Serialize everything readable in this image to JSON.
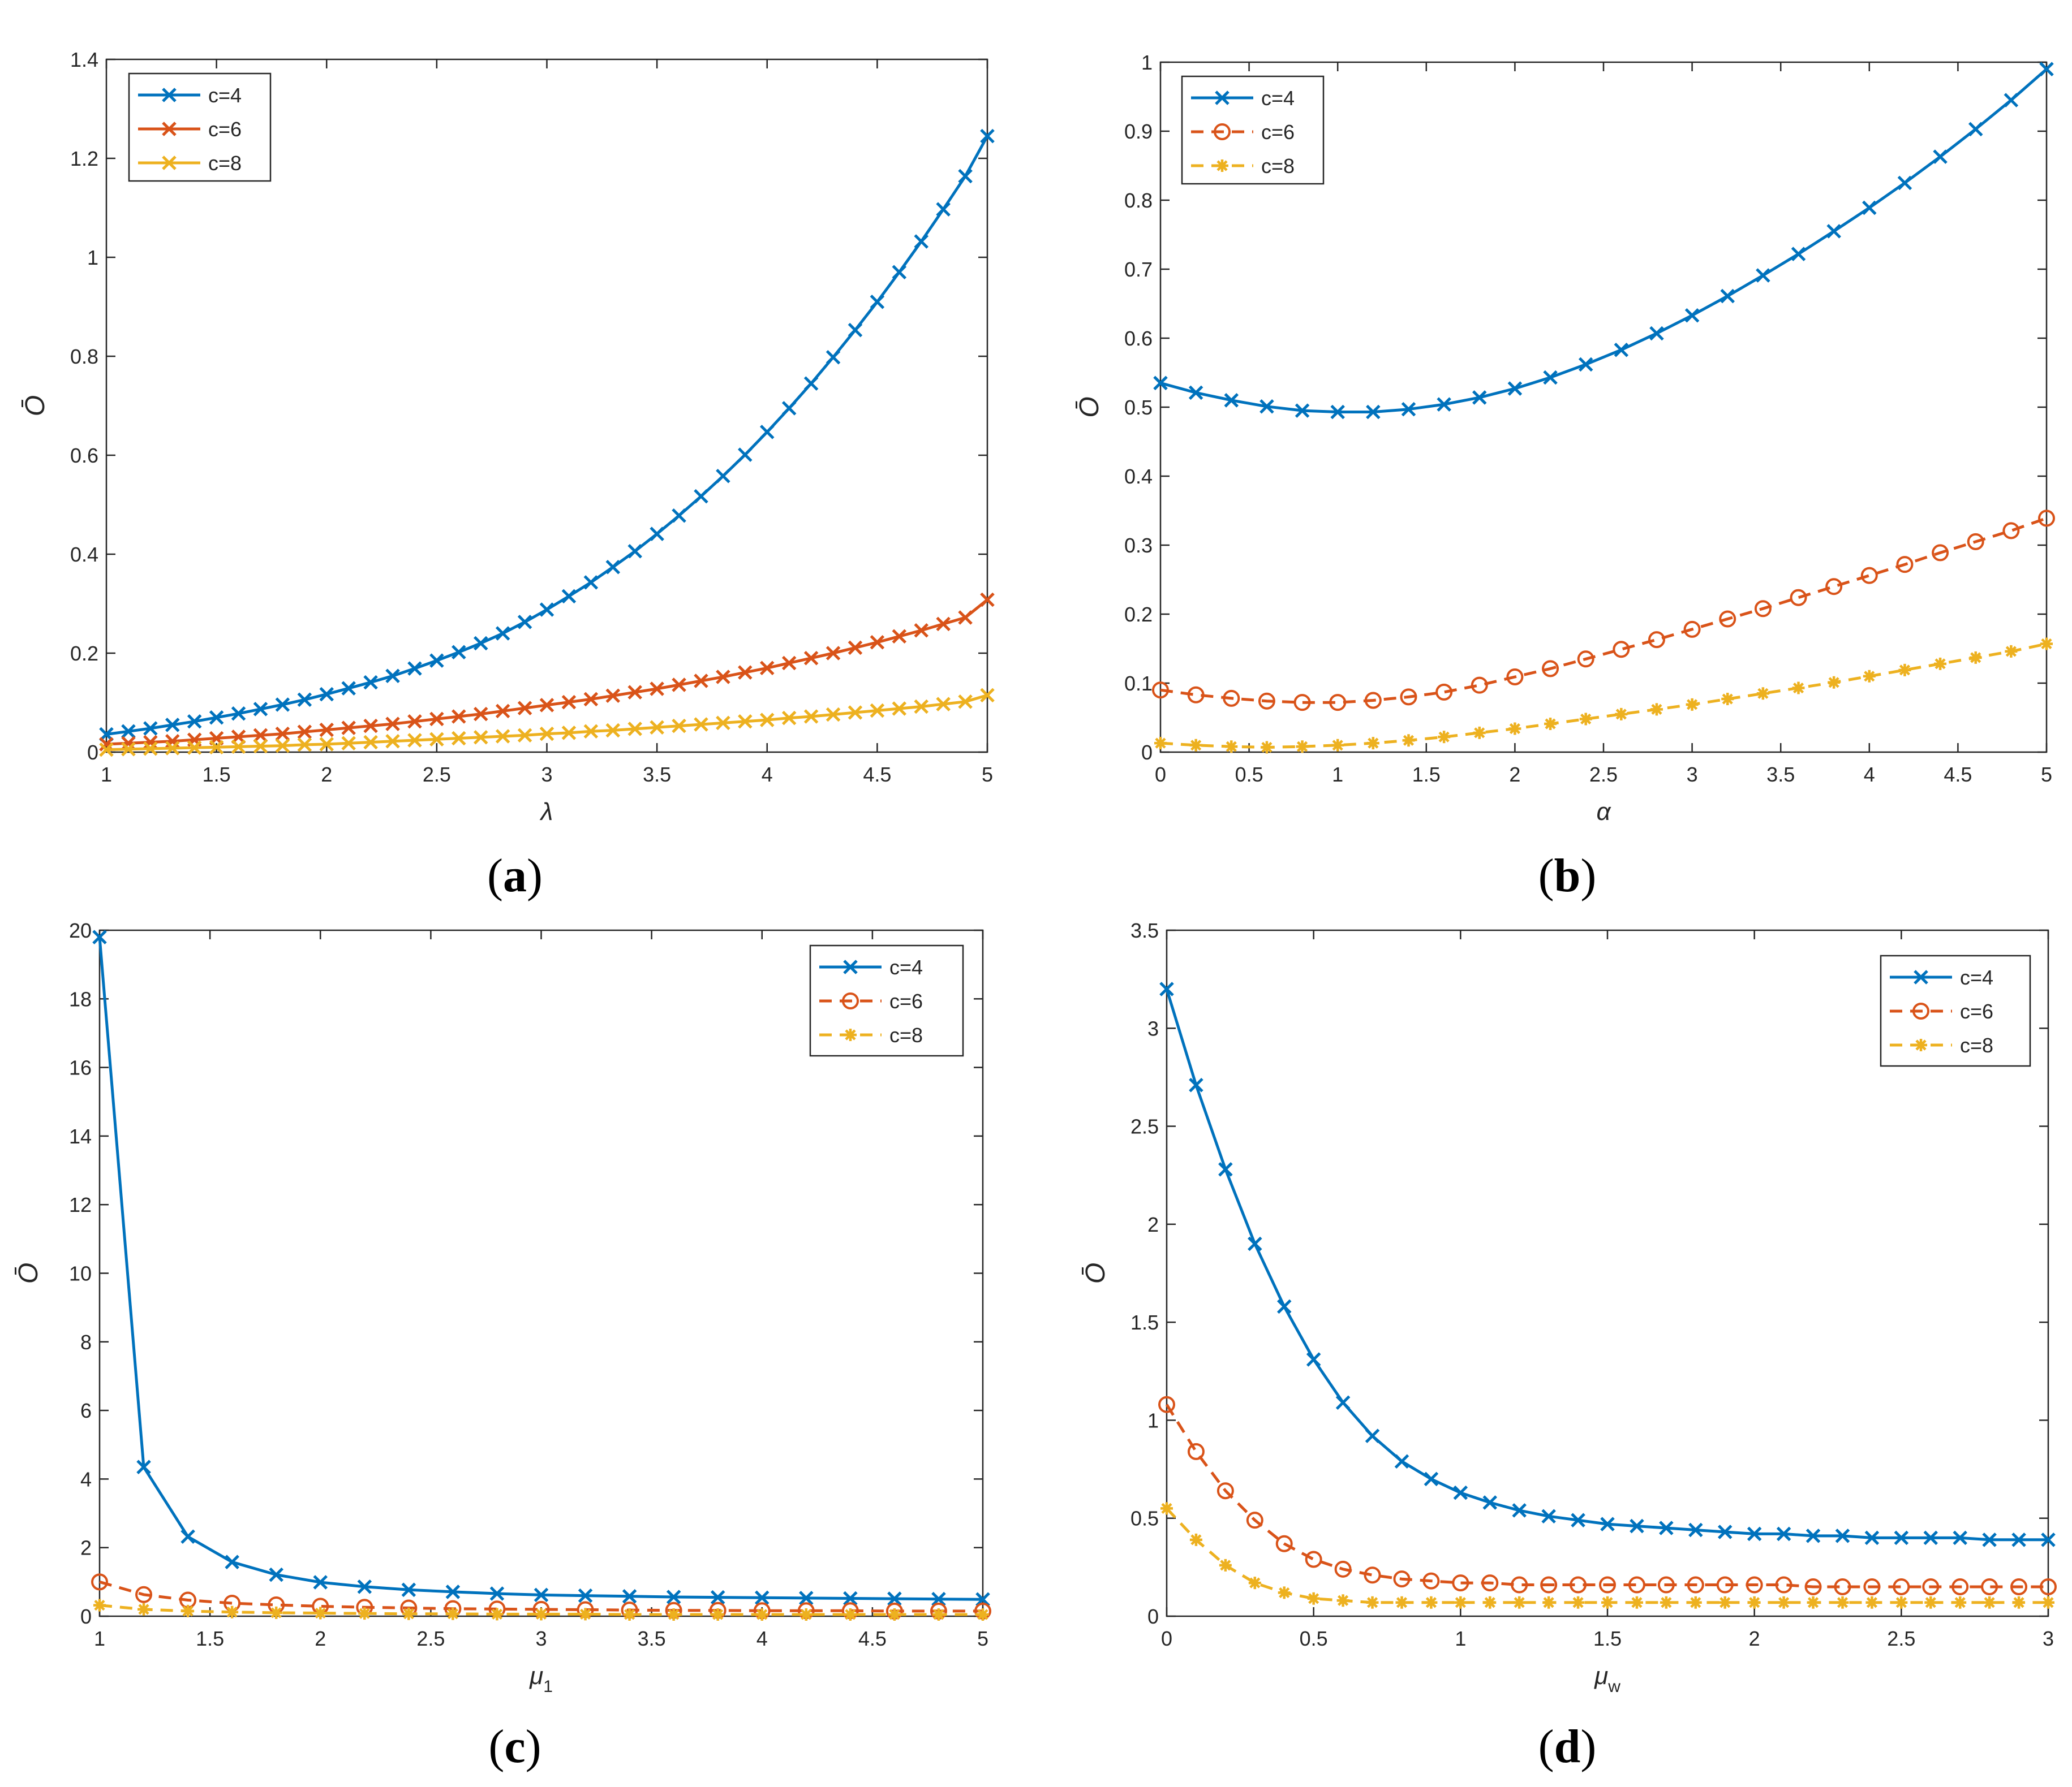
{
  "figure": {
    "title": ""
  },
  "colors": {
    "c4": "#0072BD",
    "c6": "#D95319",
    "c8": "#EDB120",
    "axis": "#262626"
  },
  "chart_data": [
    {
      "id": "a",
      "type": "line",
      "caption": "a",
      "xlabel": "λ",
      "ylabel": "Ō",
      "xlim": [
        1,
        5
      ],
      "ylim": [
        0,
        1.4
      ],
      "xticks": [
        1,
        1.5,
        2,
        2.5,
        3,
        3.5,
        4,
        4.5,
        5
      ],
      "xtick_labels": [
        "1",
        "1.5",
        "2",
        "2.5",
        "3",
        "3.5",
        "4",
        "4.5",
        "5"
      ],
      "yticks": [
        0,
        0.2,
        0.4,
        0.6,
        0.8,
        1,
        1.2,
        1.4
      ],
      "ytick_labels": [
        "0",
        "0.2",
        "0.4",
        "0.6",
        "0.8",
        "1",
        "1.2",
        "1.4"
      ],
      "legend_position": "top-left",
      "x": [
        1,
        1.1,
        1.2,
        1.3,
        1.4,
        1.5,
        1.6,
        1.7,
        1.8,
        1.9,
        2,
        2.1,
        2.2,
        2.3,
        2.4,
        2.5,
        2.6,
        2.7,
        2.8,
        2.9,
        3,
        3.1,
        3.2,
        3.3,
        3.4,
        3.5,
        3.6,
        3.7,
        3.8,
        3.9,
        4,
        4.1,
        4.2,
        4.3,
        4.4,
        4.5,
        4.6,
        4.7,
        4.8,
        4.9,
        5
      ],
      "series": [
        {
          "name": "c=4",
          "color": "#0072BD",
          "dash": "solid",
          "marker": "x",
          "values": [
            0.036,
            0.042,
            0.048,
            0.055,
            0.062,
            0.07,
            0.078,
            0.087,
            0.096,
            0.106,
            0.117,
            0.129,
            0.141,
            0.154,
            0.169,
            0.185,
            0.202,
            0.22,
            0.24,
            0.263,
            0.288,
            0.315,
            0.343,
            0.374,
            0.406,
            0.441,
            0.478,
            0.517,
            0.558,
            0.601,
            0.647,
            0.695,
            0.745,
            0.798,
            0.853,
            0.91,
            0.97,
            1.032,
            1.097,
            1.164,
            1.245
          ]
        },
        {
          "name": "c=6",
          "color": "#D95319",
          "dash": "solid",
          "marker": "x",
          "values": [
            0.016,
            0.018,
            0.02,
            0.022,
            0.025,
            0.028,
            0.031,
            0.034,
            0.037,
            0.041,
            0.045,
            0.049,
            0.053,
            0.057,
            0.062,
            0.067,
            0.072,
            0.077,
            0.083,
            0.089,
            0.095,
            0.101,
            0.107,
            0.114,
            0.121,
            0.128,
            0.136,
            0.144,
            0.152,
            0.161,
            0.17,
            0.18,
            0.19,
            0.2,
            0.211,
            0.222,
            0.234,
            0.246,
            0.259,
            0.272,
            0.308
          ]
        },
        {
          "name": "c=8",
          "color": "#EDB120",
          "dash": "solid",
          "marker": "x",
          "values": [
            0.005,
            0.006,
            0.007,
            0.008,
            0.009,
            0.01,
            0.011,
            0.012,
            0.013,
            0.015,
            0.016,
            0.018,
            0.02,
            0.022,
            0.024,
            0.026,
            0.028,
            0.03,
            0.032,
            0.034,
            0.037,
            0.039,
            0.042,
            0.044,
            0.047,
            0.05,
            0.053,
            0.056,
            0.059,
            0.062,
            0.065,
            0.069,
            0.072,
            0.076,
            0.08,
            0.084,
            0.088,
            0.092,
            0.097,
            0.102,
            0.115
          ]
        }
      ]
    },
    {
      "id": "b",
      "type": "line",
      "caption": "b",
      "xlabel": "α",
      "ylabel": "Ō",
      "xlim": [
        0,
        5
      ],
      "ylim": [
        0,
        1
      ],
      "xticks": [
        0,
        0.5,
        1,
        1.5,
        2,
        2.5,
        3,
        3.5,
        4,
        4.5,
        5
      ],
      "xtick_labels": [
        "0",
        "0.5",
        "1",
        "1.5",
        "2",
        "2.5",
        "3",
        "3.5",
        "4",
        "4.5",
        "5"
      ],
      "yticks": [
        0,
        0.1,
        0.2,
        0.3,
        0.4,
        0.5,
        0.6,
        0.7,
        0.8,
        0.9,
        1
      ],
      "ytick_labels": [
        "0",
        "0.1",
        "0.2",
        "0.3",
        "0.4",
        "0.5",
        "0.6",
        "0.7",
        "0.8",
        "0.9",
        "1"
      ],
      "legend_position": "top-left",
      "x": [
        0,
        0.2,
        0.4,
        0.6,
        0.8,
        1,
        1.2,
        1.4,
        1.6,
        1.8,
        2,
        2.2,
        2.4,
        2.6,
        2.8,
        3,
        3.2,
        3.4,
        3.6,
        3.8,
        4,
        4.2,
        4.4,
        4.6,
        4.8,
        5
      ],
      "series": [
        {
          "name": "c=4",
          "color": "#0072BD",
          "dash": "solid",
          "marker": "x",
          "values": [
            0.535,
            0.521,
            0.51,
            0.501,
            0.495,
            0.493,
            0.493,
            0.497,
            0.504,
            0.514,
            0.527,
            0.543,
            0.562,
            0.583,
            0.607,
            0.633,
            0.661,
            0.691,
            0.722,
            0.755,
            0.789,
            0.825,
            0.863,
            0.903,
            0.945,
            0.99
          ]
        },
        {
          "name": "c=6",
          "color": "#D95319",
          "dash": "dashed",
          "marker": "o",
          "values": [
            0.09,
            0.083,
            0.078,
            0.074,
            0.072,
            0.072,
            0.075,
            0.08,
            0.087,
            0.097,
            0.109,
            0.121,
            0.135,
            0.149,
            0.163,
            0.178,
            0.193,
            0.208,
            0.224,
            0.24,
            0.256,
            0.272,
            0.289,
            0.305,
            0.321,
            0.339
          ]
        },
        {
          "name": "c=8",
          "color": "#EDB120",
          "dash": "dashed",
          "marker": "*",
          "values": [
            0.013,
            0.01,
            0.008,
            0.007,
            0.008,
            0.01,
            0.013,
            0.017,
            0.022,
            0.028,
            0.034,
            0.041,
            0.048,
            0.055,
            0.062,
            0.069,
            0.077,
            0.085,
            0.093,
            0.101,
            0.11,
            0.119,
            0.128,
            0.137,
            0.146,
            0.157
          ]
        }
      ]
    },
    {
      "id": "c",
      "type": "line",
      "caption": "c",
      "xlabel": "μ",
      "xlabel_sub": "1",
      "ylabel": "Ō",
      "xlim": [
        1,
        5
      ],
      "ylim": [
        0,
        20
      ],
      "xticks": [
        1,
        1.5,
        2,
        2.5,
        3,
        3.5,
        4,
        4.5,
        5
      ],
      "xtick_labels": [
        "1",
        "1.5",
        "2",
        "2.5",
        "3",
        "3.5",
        "4",
        "4.5",
        "5"
      ],
      "yticks": [
        0,
        2,
        4,
        6,
        8,
        10,
        12,
        14,
        16,
        18,
        20
      ],
      "ytick_labels": [
        "0",
        "2",
        "4",
        "6",
        "8",
        "10",
        "12",
        "14",
        "16",
        "18",
        "20"
      ],
      "legend_position": "top-right",
      "x": [
        1,
        1.2,
        1.4,
        1.6,
        1.8,
        2,
        2.2,
        2.4,
        2.6,
        2.8,
        3,
        3.2,
        3.4,
        3.6,
        3.8,
        4,
        4.2,
        4.4,
        4.6,
        4.8,
        5
      ],
      "series": [
        {
          "name": "c=4",
          "color": "#0072BD",
          "dash": "solid",
          "marker": "x",
          "values": [
            19.8,
            4.35,
            2.32,
            1.58,
            1.21,
            0.99,
            0.86,
            0.77,
            0.71,
            0.66,
            0.62,
            0.6,
            0.58,
            0.56,
            0.55,
            0.54,
            0.53,
            0.52,
            0.51,
            0.5,
            0.49
          ]
        },
        {
          "name": "c=6",
          "color": "#D95319",
          "dash": "dashed",
          "marker": "o",
          "values": [
            1.0,
            0.63,
            0.47,
            0.38,
            0.33,
            0.29,
            0.26,
            0.24,
            0.22,
            0.21,
            0.2,
            0.19,
            0.18,
            0.17,
            0.17,
            0.16,
            0.16,
            0.16,
            0.15,
            0.15,
            0.15
          ]
        },
        {
          "name": "c=8",
          "color": "#EDB120",
          "dash": "dashed",
          "marker": "*",
          "values": [
            0.32,
            0.2,
            0.15,
            0.12,
            0.1,
            0.09,
            0.08,
            0.07,
            0.07,
            0.06,
            0.06,
            0.06,
            0.05,
            0.05,
            0.05,
            0.05,
            0.05,
            0.05,
            0.05,
            0.05,
            0.05
          ]
        }
      ]
    },
    {
      "id": "d",
      "type": "line",
      "caption": "d",
      "xlabel": "μ",
      "xlabel_sub": "w",
      "ylabel": "Ō",
      "xlim": [
        0,
        3
      ],
      "ylim": [
        0,
        3.5
      ],
      "xticks": [
        0,
        0.5,
        1,
        1.5,
        2,
        2.5,
        3
      ],
      "xtick_labels": [
        "0",
        "0.5",
        "1",
        "1.5",
        "2",
        "2.5",
        "3"
      ],
      "yticks": [
        0,
        0.5,
        1,
        1.5,
        2,
        2.5,
        3,
        3.5
      ],
      "ytick_labels": [
        "0",
        "0.5",
        "1",
        "1.5",
        "2",
        "2.5",
        "3",
        "3.5"
      ],
      "legend_position": "top-right",
      "x": [
        0,
        0.1,
        0.2,
        0.3,
        0.4,
        0.5,
        0.6,
        0.7,
        0.8,
        0.9,
        1,
        1.1,
        1.2,
        1.3,
        1.4,
        1.5,
        1.6,
        1.7,
        1.8,
        1.9,
        2,
        2.1,
        2.2,
        2.3,
        2.4,
        2.5,
        2.6,
        2.7,
        2.8,
        2.9,
        3
      ],
      "series": [
        {
          "name": "c=4",
          "color": "#0072BD",
          "dash": "solid",
          "marker": "x",
          "values": [
            3.2,
            2.71,
            2.28,
            1.9,
            1.58,
            1.31,
            1.09,
            0.92,
            0.79,
            0.7,
            0.63,
            0.58,
            0.54,
            0.51,
            0.49,
            0.47,
            0.46,
            0.45,
            0.44,
            0.43,
            0.42,
            0.42,
            0.41,
            0.41,
            0.4,
            0.4,
            0.4,
            0.4,
            0.39,
            0.39,
            0.39
          ]
        },
        {
          "name": "c=6",
          "color": "#D95319",
          "dash": "dashed",
          "marker": "o",
          "values": [
            1.08,
            0.84,
            0.64,
            0.49,
            0.37,
            0.29,
            0.24,
            0.21,
            0.19,
            0.18,
            0.17,
            0.17,
            0.16,
            0.16,
            0.16,
            0.16,
            0.16,
            0.16,
            0.16,
            0.16,
            0.16,
            0.16,
            0.15,
            0.15,
            0.15,
            0.15,
            0.15,
            0.15,
            0.15,
            0.15,
            0.15
          ]
        },
        {
          "name": "c=8",
          "color": "#EDB120",
          "dash": "dashed",
          "marker": "*",
          "values": [
            0.55,
            0.39,
            0.26,
            0.17,
            0.12,
            0.09,
            0.08,
            0.07,
            0.07,
            0.07,
            0.07,
            0.07,
            0.07,
            0.07,
            0.07,
            0.07,
            0.07,
            0.07,
            0.07,
            0.07,
            0.07,
            0.07,
            0.07,
            0.07,
            0.07,
            0.07,
            0.07,
            0.07,
            0.07,
            0.07,
            0.07
          ]
        }
      ]
    }
  ]
}
